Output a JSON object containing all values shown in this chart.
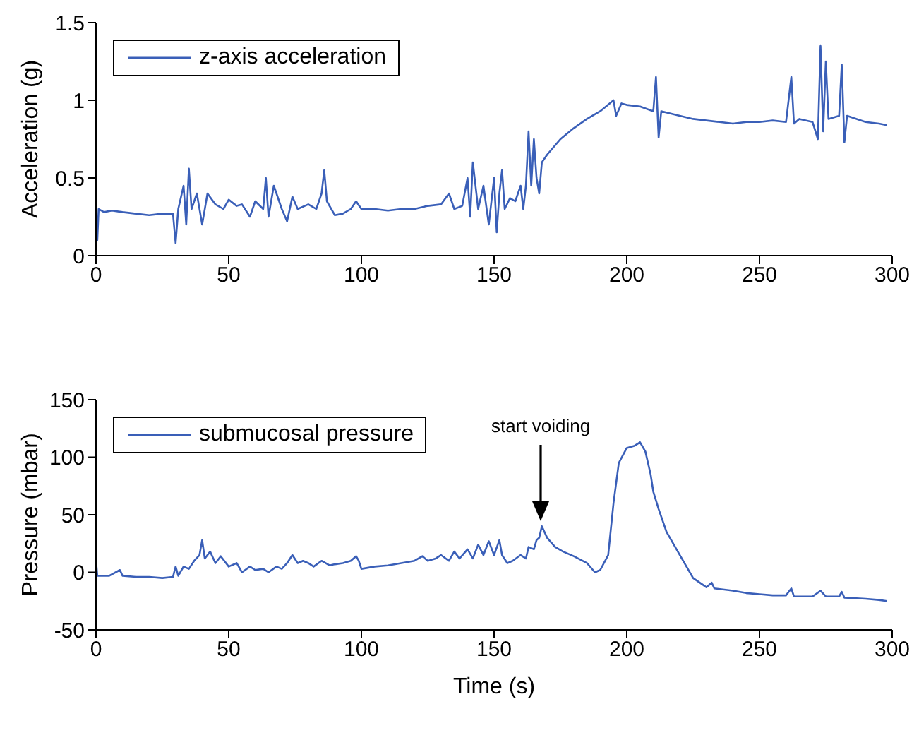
{
  "chart_data": [
    {
      "type": "line",
      "ylabel": "Acceleration (g)",
      "xlim": [
        0,
        300
      ],
      "xticks": [
        0,
        50,
        100,
        150,
        200,
        250,
        300
      ],
      "ylim": [
        0,
        1.5
      ],
      "yticks": [
        0,
        0.5,
        1,
        1.5
      ],
      "legend": "top left",
      "line_style": "solid",
      "marker": "none",
      "series": [
        {
          "name": "z-axis acceleration",
          "color": "#3a5fb8",
          "x": [
            0,
            0.5,
            1,
            3,
            6,
            10,
            15,
            20,
            25,
            29,
            30,
            31,
            33,
            34,
            35,
            36,
            38,
            40,
            42,
            45,
            48,
            50,
            53,
            55,
            58,
            60,
            63,
            64,
            65,
            67,
            70,
            72,
            74,
            76,
            80,
            83,
            85,
            86,
            87,
            90,
            93,
            96,
            98,
            100,
            105,
            110,
            115,
            120,
            125,
            130,
            133,
            135,
            138,
            140,
            141,
            142,
            144,
            146,
            148,
            150,
            151,
            152,
            153,
            154,
            156,
            158,
            160,
            161,
            162,
            163,
            164,
            165,
            166,
            167,
            168,
            170,
            175,
            180,
            185,
            190,
            195,
            196,
            198,
            200,
            205,
            210,
            211,
            212,
            213,
            220,
            225,
            230,
            235,
            240,
            245,
            250,
            255,
            260,
            262,
            263,
            265,
            270,
            272,
            273,
            274,
            275,
            276,
            280,
            281,
            282,
            283,
            290,
            295,
            298
          ],
          "values": [
            0.3,
            0.1,
            0.3,
            0.28,
            0.29,
            0.28,
            0.27,
            0.26,
            0.27,
            0.27,
            0.08,
            0.3,
            0.45,
            0.2,
            0.56,
            0.3,
            0.4,
            0.2,
            0.4,
            0.33,
            0.3,
            0.36,
            0.32,
            0.33,
            0.25,
            0.35,
            0.3,
            0.5,
            0.25,
            0.45,
            0.3,
            0.22,
            0.38,
            0.3,
            0.33,
            0.3,
            0.4,
            0.55,
            0.35,
            0.26,
            0.27,
            0.3,
            0.35,
            0.3,
            0.3,
            0.29,
            0.3,
            0.3,
            0.32,
            0.33,
            0.4,
            0.3,
            0.32,
            0.5,
            0.25,
            0.6,
            0.3,
            0.45,
            0.2,
            0.5,
            0.15,
            0.4,
            0.55,
            0.3,
            0.37,
            0.35,
            0.45,
            0.3,
            0.45,
            0.8,
            0.45,
            0.75,
            0.5,
            0.4,
            0.6,
            0.65,
            0.75,
            0.82,
            0.88,
            0.93,
            1.0,
            0.9,
            0.98,
            0.97,
            0.96,
            0.93,
            1.15,
            0.76,
            0.93,
            0.9,
            0.88,
            0.87,
            0.86,
            0.85,
            0.86,
            0.86,
            0.87,
            0.86,
            1.15,
            0.85,
            0.88,
            0.86,
            0.75,
            1.35,
            0.8,
            1.25,
            0.88,
            0.9,
            1.23,
            0.73,
            0.9,
            0.86,
            0.85,
            0.84
          ]
        }
      ]
    },
    {
      "type": "line",
      "xlabel": "Time (s)",
      "ylabel": "Pressure (mbar)",
      "xlim": [
        0,
        300
      ],
      "xticks": [
        0,
        50,
        100,
        150,
        200,
        250,
        300
      ],
      "ylim": [
        -50,
        150
      ],
      "yticks": [
        -50,
        0,
        50,
        100,
        150
      ],
      "legend": "top left",
      "line_style": "solid",
      "marker": "none",
      "annotations": [
        "start voiding"
      ],
      "series": [
        {
          "name": "submucosal pressure",
          "color": "#3a5fb8",
          "x": [
            0,
            0.5,
            5,
            9,
            10,
            15,
            20,
            25,
            29,
            30,
            31,
            33,
            35,
            37,
            39,
            40,
            41,
            43,
            45,
            47,
            50,
            53,
            55,
            58,
            60,
            63,
            65,
            68,
            70,
            72,
            74,
            76,
            78,
            80,
            82,
            85,
            88,
            90,
            93,
            96,
            98,
            99,
            100,
            105,
            110,
            115,
            120,
            123,
            125,
            128,
            130,
            133,
            135,
            137,
            140,
            142,
            144,
            146,
            148,
            150,
            152,
            153,
            155,
            157,
            160,
            162,
            163,
            165,
            166,
            167,
            168,
            170,
            173,
            176,
            180,
            185,
            188,
            190,
            193,
            195,
            197,
            200,
            203,
            205,
            207,
            209,
            210,
            212,
            215,
            220,
            225,
            230,
            232,
            233,
            240,
            245,
            250,
            255,
            260,
            262,
            263,
            270,
            273,
            275,
            280,
            281,
            282,
            290,
            295,
            298
          ],
          "values": [
            10,
            -3,
            -3,
            2,
            -3,
            -4,
            -4,
            -5,
            -4,
            5,
            -3,
            5,
            3,
            10,
            15,
            28,
            12,
            18,
            8,
            14,
            5,
            8,
            0,
            5,
            2,
            3,
            0,
            5,
            3,
            8,
            15,
            8,
            10,
            8,
            5,
            10,
            6,
            7,
            8,
            10,
            14,
            10,
            3,
            5,
            6,
            8,
            10,
            14,
            10,
            12,
            15,
            10,
            18,
            12,
            20,
            12,
            24,
            15,
            27,
            15,
            28,
            15,
            8,
            10,
            15,
            12,
            22,
            20,
            28,
            30,
            40,
            30,
            22,
            18,
            14,
            8,
            0,
            2,
            15,
            60,
            95,
            108,
            110,
            113,
            105,
            85,
            70,
            55,
            35,
            15,
            -5,
            -13,
            -9,
            -14,
            -16,
            -18,
            -19,
            -20,
            -20,
            -14,
            -21,
            -21,
            -16,
            -21,
            -21,
            -17,
            -22,
            -23,
            -24,
            -25
          ]
        }
      ]
    }
  ]
}
